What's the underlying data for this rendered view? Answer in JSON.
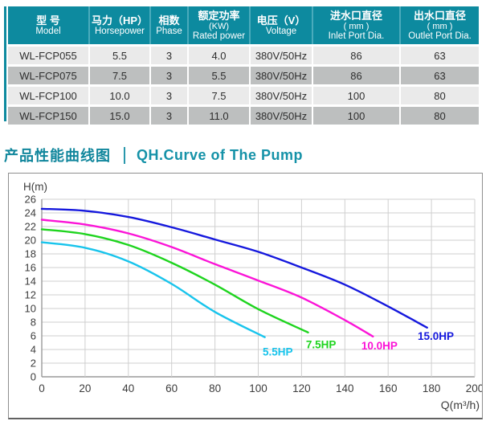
{
  "table": {
    "headers": [
      {
        "zh": "型 号",
        "sub": "",
        "en": "Model"
      },
      {
        "zh": "马力（HP）",
        "sub": "",
        "en": "Horsepower"
      },
      {
        "zh": "相数",
        "sub": "",
        "en": "Phase"
      },
      {
        "zh": "额定功率",
        "sub": "(KW)",
        "en": "Rated power"
      },
      {
        "zh": "电压（V）",
        "sub": "",
        "en": "Voltage"
      },
      {
        "zh": "进水口直径",
        "sub": "( mm )",
        "en": "Inlet Port Dia."
      },
      {
        "zh": "出水口直径",
        "sub": "( mm )",
        "en": "Outlet Port Dia."
      }
    ],
    "rows": [
      [
        "WL-FCP055",
        "5.5",
        "3",
        "4.0",
        "380V/50Hz",
        "86",
        "63"
      ],
      [
        "WL-FCP075",
        "7.5",
        "3",
        "5.5",
        "380V/50Hz",
        "86",
        "63"
      ],
      [
        "WL-FCP100",
        "10.0",
        "3",
        "7.5",
        "380V/50Hz",
        "100",
        "80"
      ],
      [
        "WL-FCP150",
        "15.0",
        "3",
        "11.0",
        "380V/50Hz",
        "100",
        "80"
      ]
    ]
  },
  "section": {
    "title_zh": "产品性能曲线图",
    "title_en": "QH.Curve of The Pump"
  },
  "colors": {
    "teal_header": "#0d8a9f",
    "row_light": "#eaeaea",
    "row_dark": "#bdbfbf",
    "grid": "#cfcfcf",
    "axis": "#9a9a9a",
    "tick_text": "#3c3c3c"
  },
  "chart_data": {
    "type": "line",
    "title": "QH.Curve of The Pump",
    "xlabel": "Q(m³/h)",
    "ylabel": "H(m)",
    "xlim": [
      0,
      200
    ],
    "ylim": [
      0,
      26
    ],
    "xtick_step": 20,
    "ytick_step": 2,
    "grid": true,
    "legend_position": "labels-at-curve-ends",
    "series": [
      {
        "name": "5.5HP",
        "color": "#18c4ec",
        "label_at": [
          109,
          3.1
        ],
        "points": [
          [
            0,
            19.7
          ],
          [
            20,
            18.9
          ],
          [
            40,
            16.9
          ],
          [
            60,
            13.6
          ],
          [
            80,
            9.5
          ],
          [
            103,
            5.8
          ]
        ]
      },
      {
        "name": "7.5HP",
        "color": "#1ed41e",
        "label_at": [
          129,
          4.2
        ],
        "points": [
          [
            0,
            21.6
          ],
          [
            20,
            20.9
          ],
          [
            40,
            19.3
          ],
          [
            60,
            16.7
          ],
          [
            80,
            13.5
          ],
          [
            100,
            9.9
          ],
          [
            123,
            6.5
          ]
        ]
      },
      {
        "name": "10.0HP",
        "color": "#fb14d7",
        "label_at": [
          156,
          4.0
        ],
        "points": [
          [
            0,
            23.0
          ],
          [
            20,
            22.3
          ],
          [
            40,
            21.0
          ],
          [
            60,
            19.0
          ],
          [
            80,
            16.5
          ],
          [
            100,
            14.1
          ],
          [
            120,
            11.6
          ],
          [
            140,
            8.3
          ],
          [
            153,
            5.9
          ]
        ]
      },
      {
        "name": "15.0HP",
        "color": "#1518dd",
        "label_at": [
          182,
          5.4
        ],
        "points": [
          [
            0,
            24.6
          ],
          [
            20,
            24.3
          ],
          [
            40,
            23.4
          ],
          [
            60,
            21.9
          ],
          [
            80,
            20.1
          ],
          [
            100,
            18.3
          ],
          [
            120,
            16.0
          ],
          [
            140,
            13.5
          ],
          [
            160,
            10.3
          ],
          [
            178,
            7.2
          ]
        ]
      }
    ]
  }
}
